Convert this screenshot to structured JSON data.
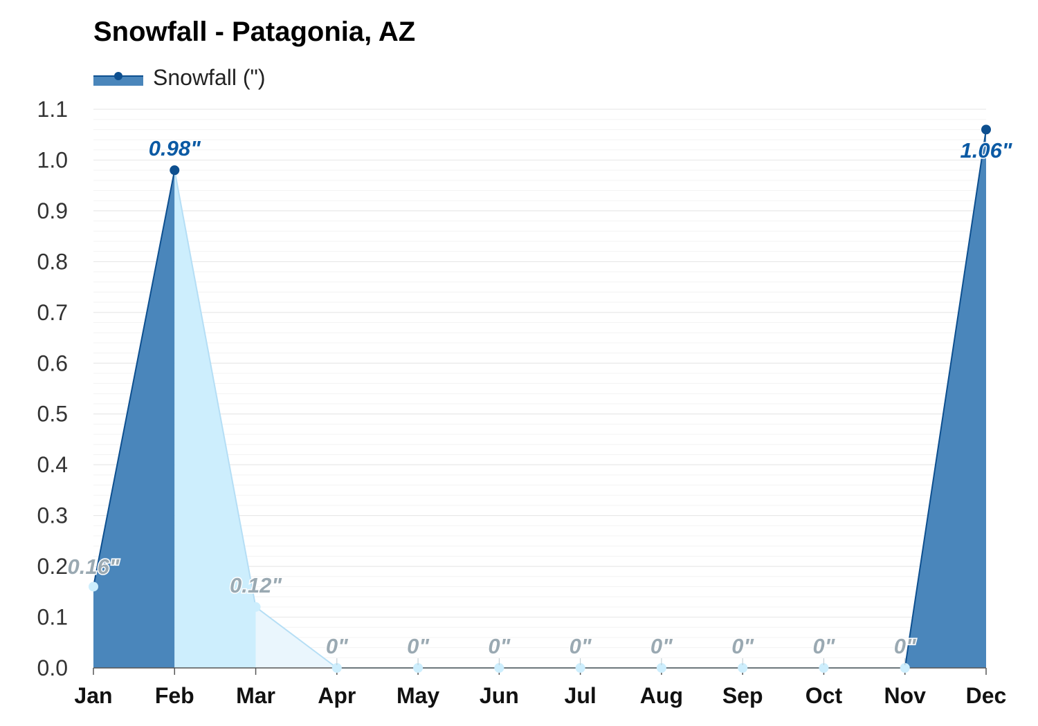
{
  "chart_data": {
    "type": "area",
    "title": "Snowfall - Patagonia, AZ",
    "xlabel": "",
    "ylabel": "",
    "categories": [
      "Jan",
      "Feb",
      "Mar",
      "Apr",
      "May",
      "Jun",
      "Jul",
      "Aug",
      "Sep",
      "Oct",
      "Nov",
      "Dec"
    ],
    "series": [
      {
        "name": "Snowfall (\")",
        "values": [
          0.16,
          0.98,
          0.12,
          0,
          0,
          0,
          0,
          0,
          0,
          0,
          0,
          1.06
        ],
        "labels": [
          "0.16\"",
          "0.98\"",
          "0.12\"",
          "0\"",
          "0\"",
          "0\"",
          "0\"",
          "0\"",
          "0\"",
          "0\"",
          "0\"",
          "1.06\""
        ]
      }
    ],
    "ylim": [
      0,
      1.1
    ],
    "yticks": [
      "0.0",
      "0.1",
      "0.2",
      "0.3",
      "0.4",
      "0.5",
      "0.6",
      "0.7",
      "0.8",
      "0.9",
      "1.0",
      "1.1"
    ],
    "grid": true,
    "legend_position": "top-left",
    "colors": {
      "highlight_fill": "#4a86bb",
      "highlight_line": "#0d4f8f",
      "highlight_label": "#0b5aa4",
      "light_fill": "#cdeefd",
      "lighter_fill": "#eaf6fd",
      "light_line": "#b5def5",
      "light_marker": "#cdeefd",
      "muted_label": "#9aa9b2",
      "grid": "#e6e6e6",
      "axis": "#555555"
    }
  }
}
